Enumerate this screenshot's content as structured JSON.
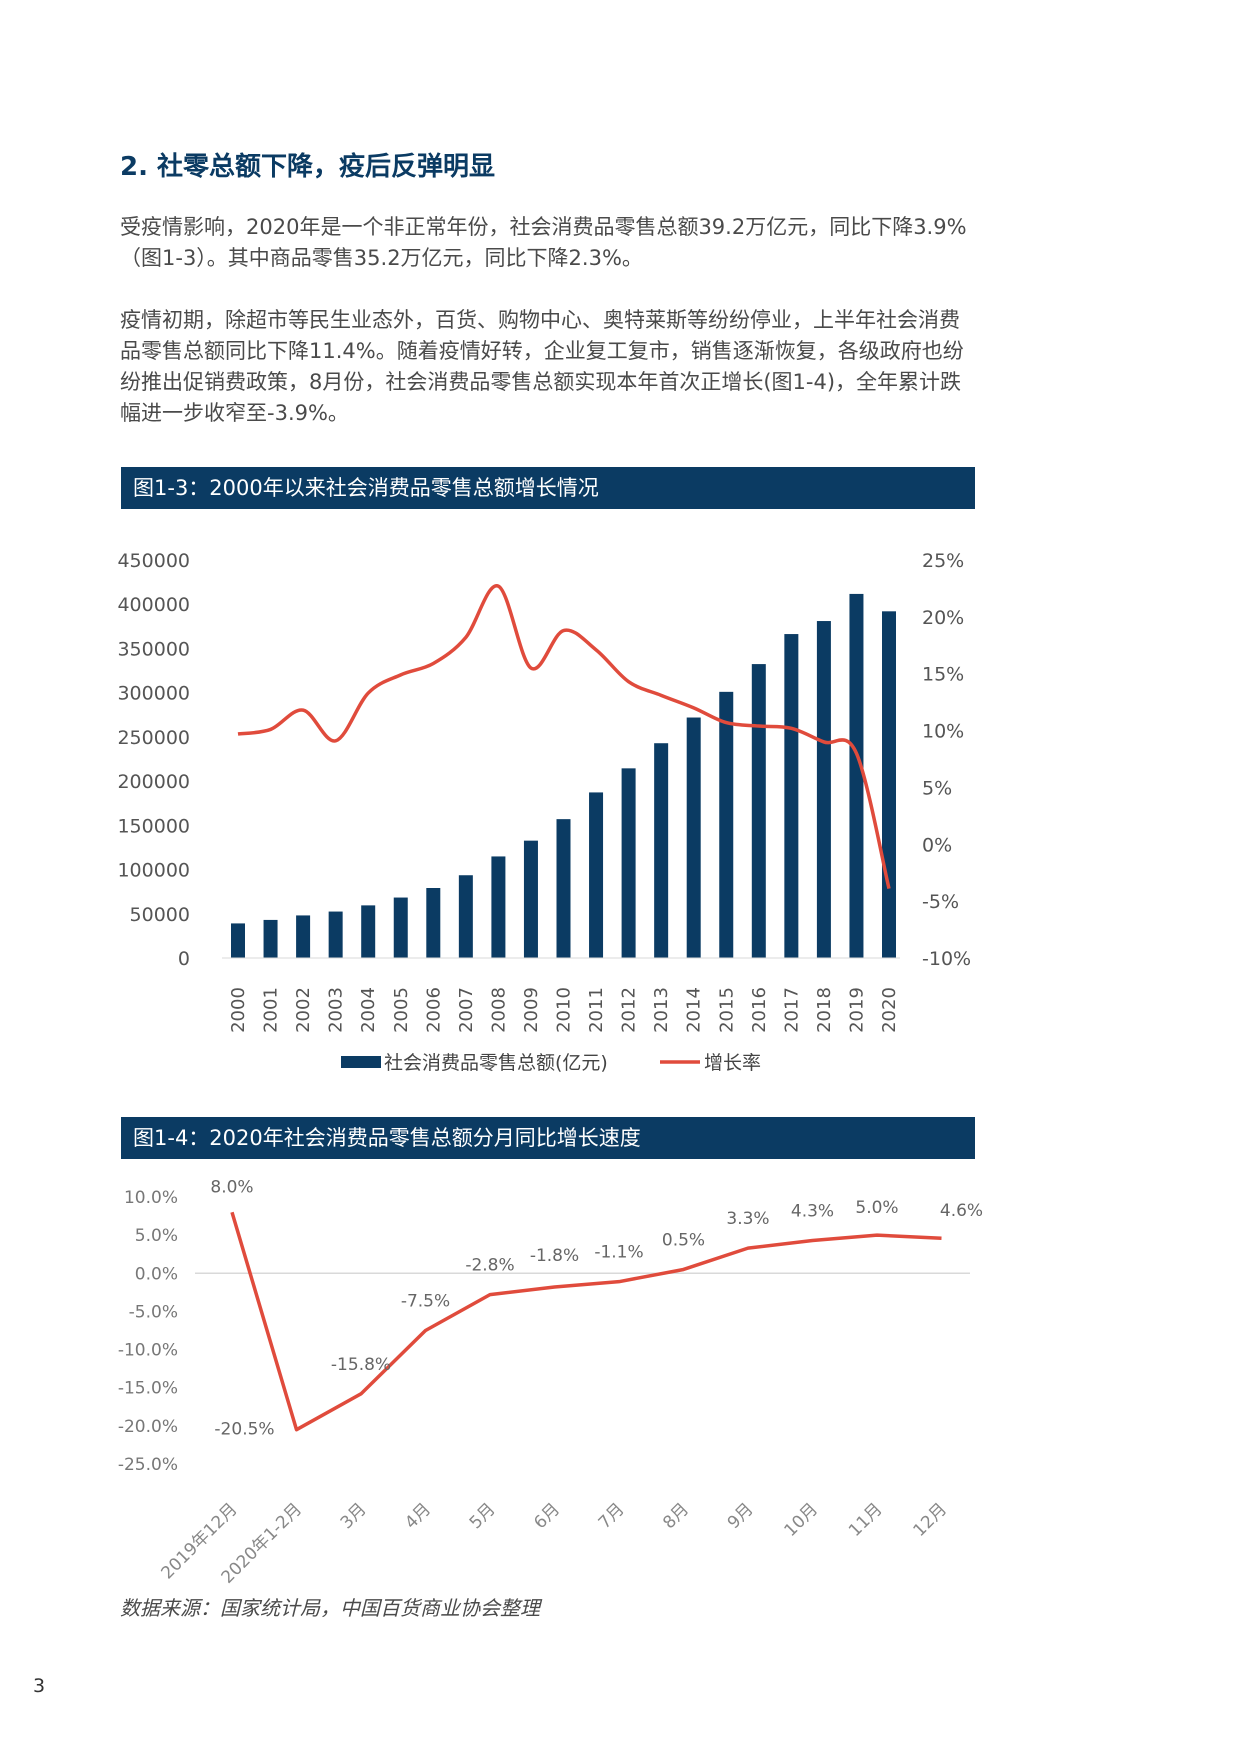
{
  "section": {
    "title": "2. 社零总额下降，疫后反弹明显",
    "para1": "受疫情影响，2020年是一个非正常年份，社会消费品零售总额39.2万亿元，同比下降3.9%（图1-3）。其中商品零售35.2万亿元，同比下降2.3%。",
    "para2": "疫情初期，除超市等民生业态外，百货、购物中心、奥特莱斯等纷纷停业，上半年社会消费品零售总额同比下降11.4%。随着疫情好转，企业复工复市，销售逐渐恢复，各级政府也纷纷推出促销费政策，8月份，社会消费品零售总额实现本年首次正增长(图1-4)，全年累计跌幅进一步收窄至-3.9%。"
  },
  "figures": {
    "fig3_title": "图1-3：2000年以来社会消费品零售总额增长情况",
    "fig4_title": "图1-4：2020年社会消费品零售总额分月同比增长速度"
  },
  "source": "数据来源：国家统计局，中国百货商业协会整理",
  "page_number": "3",
  "colors": {
    "navy": "#0b3b63",
    "red": "#e04b3c",
    "grid": "#d9d9d9"
  },
  "chart_data": [
    {
      "type": "bar",
      "categories": [
        "2000",
        "2001",
        "2002",
        "2003",
        "2004",
        "2005",
        "2006",
        "2007",
        "2008",
        "2009",
        "2010",
        "2011",
        "2012",
        "2013",
        "2014",
        "2015",
        "2016",
        "2017",
        "2018",
        "2019",
        "2020"
      ],
      "series": [
        {
          "name": "社会消费品零售总额(亿元)",
          "type": "bar",
          "axis": "left",
          "values": [
            39106,
            43055,
            48136,
            52516,
            59501,
            68353,
            79145,
            93572,
            114830,
            132678,
            156998,
            187206,
            214433,
            242843,
            271896,
            300931,
            332316,
            366262,
            380987,
            411649,
            391981
          ]
        },
        {
          "name": "增长率",
          "type": "line",
          "axis": "right",
          "values": [
            9.7,
            10.1,
            11.8,
            9.1,
            13.3,
            14.9,
            15.9,
            18.2,
            22.7,
            15.5,
            18.8,
            17.1,
            14.3,
            13.1,
            12.0,
            10.7,
            10.4,
            10.2,
            9.0,
            8.0,
            -3.9
          ]
        }
      ],
      "y_left_ticks": [
        "450000",
        "400000",
        "350000",
        "300000",
        "250000",
        "200000",
        "150000",
        "100000",
        "50000",
        "0"
      ],
      "y_right_ticks": [
        "25%",
        "20%",
        "15%",
        "10%",
        "5%",
        "0%",
        "-5%",
        "-10%"
      ],
      "ylim_left": [
        0,
        450000
      ],
      "ylim_right": [
        -10,
        25
      ],
      "legend_position": "bottom",
      "grid": false
    },
    {
      "type": "line",
      "categories": [
        "2019年12月",
        "2020年1-2月",
        "3月",
        "4月",
        "5月",
        "6月",
        "7月",
        "8月",
        "9月",
        "10月",
        "11月",
        "12月"
      ],
      "series": [
        {
          "values": [
            8.0,
            -20.5,
            -15.8,
            -7.5,
            -2.8,
            -1.8,
            -1.1,
            0.5,
            3.3,
            4.3,
            5.0,
            4.6
          ],
          "labels": [
            "8.0%",
            "-20.5%",
            "-15.8%",
            "-7.5%",
            "-2.8%",
            "-1.8%",
            "-1.1%",
            "0.5%",
            "3.3%",
            "4.3%",
            "5.0%",
            "4.6%"
          ]
        }
      ],
      "y_ticks": [
        "10.0%",
        "5.0%",
        "0.0%",
        "-5.0%",
        "-10.0%",
        "-15.0%",
        "-20.0%",
        "-25.0%"
      ],
      "ylim": [
        -25,
        10
      ],
      "zero_line": true,
      "grid": false
    }
  ]
}
